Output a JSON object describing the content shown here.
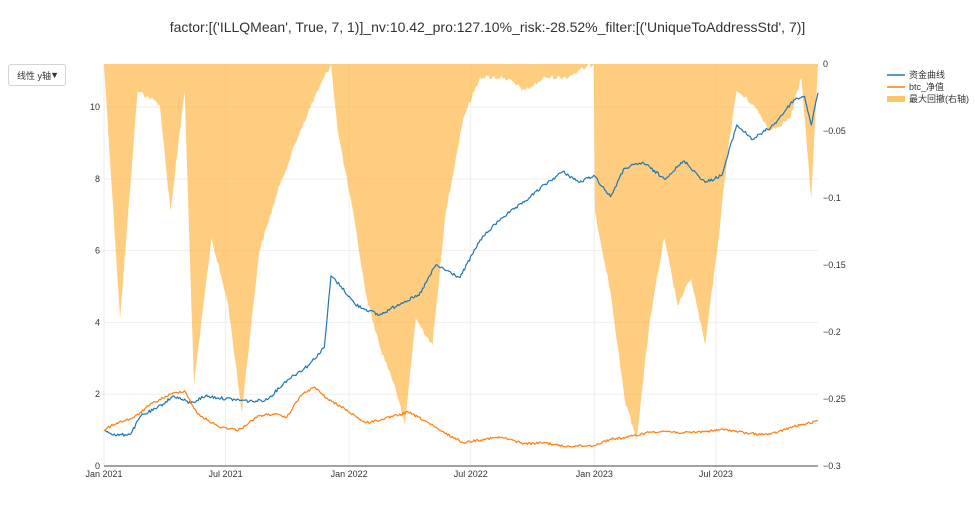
{
  "chart_title": "factor:[('ILLQMean', True, 7, 1)]_nv:10.42_pro:127.10%_risk:-28.52%_filter:[('UniqueToAddressStd', 7)]",
  "yaxis_toggle": {
    "label": "线性 y轴",
    "caret": "▼"
  },
  "chart_data": {
    "type": "line",
    "x_ticks": [
      "Jan 2021",
      "Jul 2021",
      "Jan 2022",
      "Jul 2022",
      "Jan 2023",
      "Jul 2023"
    ],
    "x_tick_dates": [
      "2021-01-01",
      "2021-07-01",
      "2022-01-01",
      "2022-07-01",
      "2023-01-01",
      "2023-07-01"
    ],
    "x_range": [
      "2021-01-01",
      "2023-11-30"
    ],
    "y_left_range": [
      0,
      11.2
    ],
    "y_left_ticks": [
      0,
      2,
      4,
      6,
      8,
      10
    ],
    "y_right_range": [
      -0.3,
      0
    ],
    "y_right_ticks": [
      0,
      -0.05,
      -0.1,
      -0.15,
      -0.2,
      -0.25,
      -0.3
    ],
    "y_right_tick_labels": [
      "0",
      "−0.05",
      "−0.1",
      "−0.15",
      "−0.2",
      "−0.25",
      "−0.3"
    ],
    "grid": true,
    "legend_position": "top-right",
    "series": [
      {
        "name": "资金曲线",
        "axis": "left",
        "color": "#1f77b4",
        "points": [
          [
            "2021-01-01",
            1.0
          ],
          [
            "2021-01-20",
            0.85
          ],
          [
            "2021-02-10",
            0.9
          ],
          [
            "2021-02-25",
            1.4
          ],
          [
            "2021-03-20",
            1.6
          ],
          [
            "2021-04-15",
            1.95
          ],
          [
            "2021-05-10",
            1.75
          ],
          [
            "2021-06-01",
            1.95
          ],
          [
            "2021-06-20",
            1.9
          ],
          [
            "2021-07-15",
            1.85
          ],
          [
            "2021-08-10",
            1.8
          ],
          [
            "2021-09-01",
            1.85
          ],
          [
            "2021-10-01",
            2.4
          ],
          [
            "2021-11-01",
            2.8
          ],
          [
            "2021-11-25",
            3.3
          ],
          [
            "2021-12-05",
            5.3
          ],
          [
            "2021-12-20",
            5.0
          ],
          [
            "2022-01-10",
            4.5
          ],
          [
            "2022-02-15",
            4.2
          ],
          [
            "2022-03-20",
            4.55
          ],
          [
            "2022-04-15",
            4.75
          ],
          [
            "2022-05-10",
            5.6
          ],
          [
            "2022-06-15",
            5.25
          ],
          [
            "2022-07-15",
            6.3
          ],
          [
            "2022-08-15",
            6.9
          ],
          [
            "2022-09-15",
            7.3
          ],
          [
            "2022-10-20",
            7.85
          ],
          [
            "2022-11-15",
            8.2
          ],
          [
            "2022-12-10",
            7.9
          ],
          [
            "2022-12-31",
            8.1
          ],
          [
            "2023-01-25",
            7.5
          ],
          [
            "2023-02-15",
            8.3
          ],
          [
            "2023-03-15",
            8.45
          ],
          [
            "2023-04-15",
            8.0
          ],
          [
            "2023-05-15",
            8.5
          ],
          [
            "2023-06-15",
            7.9
          ],
          [
            "2023-07-10",
            8.1
          ],
          [
            "2023-08-01",
            9.5
          ],
          [
            "2023-08-25",
            9.1
          ],
          [
            "2023-09-25",
            9.5
          ],
          [
            "2023-10-25",
            10.2
          ],
          [
            "2023-11-10",
            10.3
          ],
          [
            "2023-11-20",
            9.5
          ],
          [
            "2023-11-30",
            10.4
          ]
        ]
      },
      {
        "name": "btc_净值",
        "axis": "left",
        "color": "#ff7f0e",
        "points": [
          [
            "2021-01-01",
            1.0
          ],
          [
            "2021-01-20",
            1.2
          ],
          [
            "2021-02-15",
            1.35
          ],
          [
            "2021-03-10",
            1.7
          ],
          [
            "2021-04-10",
            2.0
          ],
          [
            "2021-05-01",
            2.1
          ],
          [
            "2021-05-20",
            1.45
          ],
          [
            "2021-06-20",
            1.1
          ],
          [
            "2021-07-20",
            1.0
          ],
          [
            "2021-08-20",
            1.4
          ],
          [
            "2021-09-10",
            1.45
          ],
          [
            "2021-09-30",
            1.35
          ],
          [
            "2021-10-20",
            1.95
          ],
          [
            "2021-11-10",
            2.2
          ],
          [
            "2021-12-01",
            1.85
          ],
          [
            "2021-12-25",
            1.6
          ],
          [
            "2022-01-25",
            1.2
          ],
          [
            "2022-02-20",
            1.3
          ],
          [
            "2022-03-30",
            1.5
          ],
          [
            "2022-04-25",
            1.25
          ],
          [
            "2022-05-15",
            1.0
          ],
          [
            "2022-06-20",
            0.65
          ],
          [
            "2022-07-20",
            0.75
          ],
          [
            "2022-08-15",
            0.8
          ],
          [
            "2022-09-20",
            0.62
          ],
          [
            "2022-10-20",
            0.65
          ],
          [
            "2022-11-15",
            0.55
          ],
          [
            "2022-12-31",
            0.57
          ],
          [
            "2023-01-25",
            0.75
          ],
          [
            "2023-02-20",
            0.8
          ],
          [
            "2023-03-25",
            0.95
          ],
          [
            "2023-04-15",
            0.97
          ],
          [
            "2023-05-15",
            0.92
          ],
          [
            "2023-06-25",
            0.98
          ],
          [
            "2023-07-15",
            1.02
          ],
          [
            "2023-08-20",
            0.9
          ],
          [
            "2023-09-20",
            0.88
          ],
          [
            "2023-10-25",
            1.1
          ],
          [
            "2023-11-30",
            1.25
          ]
        ]
      },
      {
        "name": "最大回撤(右轴)",
        "axis": "right",
        "type": "area",
        "color": "#fdb84a",
        "points": [
          [
            "2021-01-01",
            0
          ],
          [
            "2021-01-25",
            -0.19
          ],
          [
            "2021-02-20",
            -0.02
          ],
          [
            "2021-03-25",
            -0.03
          ],
          [
            "2021-04-10",
            -0.11
          ],
          [
            "2021-05-01",
            -0.02
          ],
          [
            "2021-05-15",
            -0.24
          ],
          [
            "2021-06-10",
            -0.13
          ],
          [
            "2021-07-05",
            -0.18
          ],
          [
            "2021-07-25",
            -0.26
          ],
          [
            "2021-08-20",
            -0.14
          ],
          [
            "2021-09-20",
            -0.09
          ],
          [
            "2021-10-20",
            -0.05
          ],
          [
            "2021-11-15",
            -0.02
          ],
          [
            "2021-12-05",
            0
          ],
          [
            "2021-12-15",
            -0.05
          ],
          [
            "2022-01-10",
            -0.12
          ],
          [
            "2022-01-25",
            -0.17
          ],
          [
            "2022-02-15",
            -0.21
          ],
          [
            "2022-03-10",
            -0.24
          ],
          [
            "2022-03-25",
            -0.27
          ],
          [
            "2022-04-10",
            -0.19
          ],
          [
            "2022-05-05",
            -0.21
          ],
          [
            "2022-05-25",
            -0.11
          ],
          [
            "2022-06-20",
            -0.04
          ],
          [
            "2022-07-15",
            -0.01
          ],
          [
            "2022-08-20",
            -0.01
          ],
          [
            "2022-09-20",
            -0.02
          ],
          [
            "2022-10-20",
            -0.01
          ],
          [
            "2022-11-20",
            -0.01
          ],
          [
            "2022-12-31",
            0
          ],
          [
            "2023-01-02",
            -0.11
          ],
          [
            "2023-01-25",
            -0.17
          ],
          [
            "2023-02-15",
            -0.25
          ],
          [
            "2023-03-05",
            -0.28
          ],
          [
            "2023-03-25",
            -0.19
          ],
          [
            "2023-04-15",
            -0.13
          ],
          [
            "2023-05-05",
            -0.18
          ],
          [
            "2023-05-25",
            -0.16
          ],
          [
            "2023-06-15",
            -0.21
          ],
          [
            "2023-07-05",
            -0.13
          ],
          [
            "2023-07-20",
            -0.06
          ],
          [
            "2023-08-01",
            -0.02
          ],
          [
            "2023-08-25",
            -0.03
          ],
          [
            "2023-09-20",
            -0.05
          ],
          [
            "2023-10-20",
            -0.04
          ],
          [
            "2023-11-05",
            -0.01
          ],
          [
            "2023-11-20",
            -0.1
          ],
          [
            "2023-11-30",
            0
          ]
        ]
      }
    ]
  }
}
